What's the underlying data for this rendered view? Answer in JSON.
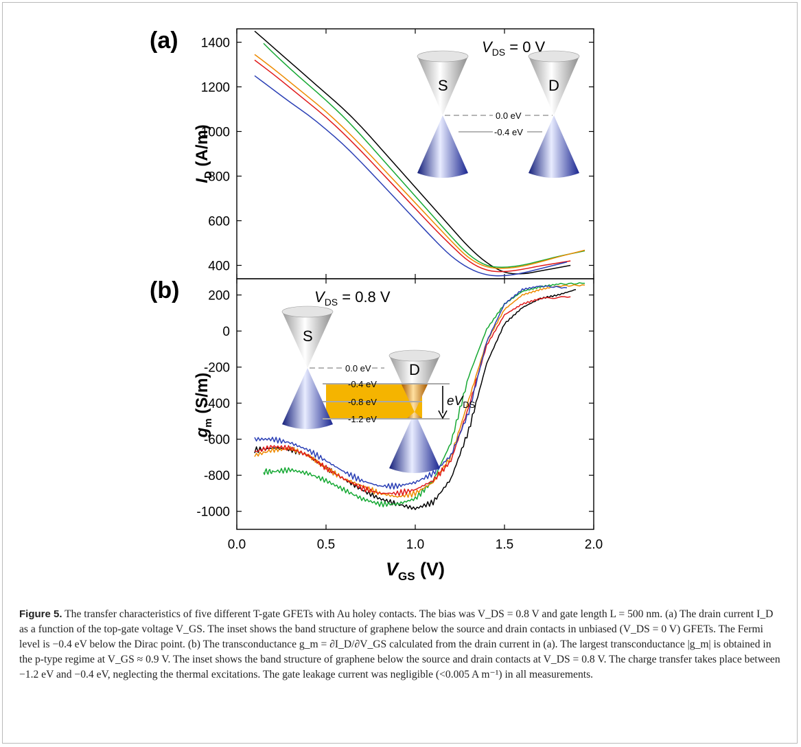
{
  "figure": {
    "panel_labels": [
      "(a)",
      "(b)"
    ],
    "caption_label": "Figure 5.",
    "caption_text": "  The transfer characteristics of five different T-gate GFETs with Au holey contacts. The bias was V_DS = 0.8 V and gate length L = 500 nm. (a) The drain current I_D as a function of the top-gate voltage V_GS. The inset shows the band structure of graphene below the source and drain contacts in unbiased (V_DS = 0 V) GFETs. The Fermi level is −0.4 eV below the Dirac point. (b) The transconductance g_m = ∂I_D/∂V_GS calculated from the drain current in (a). The largest transconductance |g_m| is obtained in the p-type regime at V_GS ≈ 0.9 V. The inset shows the band structure of graphene below the source and drain contacts at V_DS = 0.8 V. The charge transfer takes place between −1.2 eV and −0.4 eV, neglecting the thermal excitations. The gate leakage current was negligible (<0.005 A m⁻¹) in all measurements."
  },
  "inset_a": {
    "condition": "V_DS = 0 V",
    "source_label": "S",
    "drain_label": "D",
    "levels": [
      "0.0 eV",
      "-0.4 eV"
    ]
  },
  "inset_b": {
    "condition": "V_DS = 0.8 V",
    "source_label": "S",
    "drain_label": "D",
    "levels": [
      "0.0 eV",
      "-0.4 eV",
      "-0.8 eV",
      "-1.2 eV"
    ],
    "arrow_label": "eV_DS"
  },
  "colors": {
    "series": [
      "#000000",
      "#2a3fb5",
      "#e01818",
      "#ee8a00",
      "#14a832"
    ],
    "transfer_band": "#f5b400",
    "cone_gray": "#b8b8b8",
    "cone_blue": "#1d2e9a"
  },
  "chart_data": [
    {
      "type": "line",
      "panel": "(a)",
      "xlabel": "V_GS (V)",
      "ylabel": "I_D (A/m)",
      "xlim": [
        0.0,
        2.0
      ],
      "ylim": [
        340,
        1460
      ],
      "xticks": [
        "0.0",
        "0.5",
        "1.0",
        "1.5",
        "2.0"
      ],
      "yticks": [
        "400",
        "600",
        "800",
        "1000",
        "1200",
        "1400"
      ],
      "series": [
        {
          "color": "#000000",
          "x": [
            0.1,
            0.2,
            0.3,
            0.4,
            0.5,
            0.6,
            0.7,
            0.8,
            0.9,
            1.0,
            1.1,
            1.2,
            1.3,
            1.4,
            1.5,
            1.6,
            1.7,
            1.87
          ],
          "y": [
            1450,
            1380,
            1310,
            1240,
            1170,
            1100,
            1020,
            930,
            840,
            750,
            660,
            570,
            480,
            410,
            365,
            360,
            375,
            400
          ]
        },
        {
          "color": "#14a832",
          "x": [
            0.15,
            0.2,
            0.3,
            0.4,
            0.5,
            0.6,
            0.7,
            0.8,
            0.9,
            1.0,
            1.1,
            1.2,
            1.3,
            1.4,
            1.5,
            1.6,
            1.7,
            1.8,
            1.95
          ],
          "y": [
            1395,
            1355,
            1280,
            1210,
            1140,
            1065,
            980,
            890,
            800,
            710,
            620,
            530,
            445,
            395,
            390,
            400,
            420,
            440,
            465
          ]
        },
        {
          "color": "#ee8a00",
          "x": [
            0.1,
            0.2,
            0.3,
            0.4,
            0.5,
            0.6,
            0.7,
            0.8,
            0.9,
            1.0,
            1.1,
            1.2,
            1.3,
            1.4,
            1.5,
            1.6,
            1.7,
            1.8,
            1.95
          ],
          "y": [
            1345,
            1285,
            1220,
            1155,
            1090,
            1015,
            935,
            850,
            765,
            680,
            595,
            510,
            430,
            390,
            385,
            395,
            415,
            438,
            468
          ]
        },
        {
          "color": "#e01818",
          "x": [
            0.1,
            0.2,
            0.3,
            0.4,
            0.5,
            0.6,
            0.7,
            0.8,
            0.9,
            1.0,
            1.1,
            1.2,
            1.3,
            1.4,
            1.5,
            1.6,
            1.7,
            1.87
          ],
          "y": [
            1320,
            1260,
            1195,
            1130,
            1065,
            990,
            910,
            825,
            740,
            655,
            570,
            490,
            415,
            375,
            370,
            382,
            398,
            420
          ]
        },
        {
          "color": "#2a3fb5",
          "x": [
            0.1,
            0.2,
            0.3,
            0.4,
            0.5,
            0.6,
            0.7,
            0.8,
            0.9,
            1.0,
            1.1,
            1.2,
            1.3,
            1.4,
            1.5,
            1.6,
            1.7,
            1.85
          ],
          "y": [
            1250,
            1190,
            1130,
            1075,
            1010,
            940,
            860,
            775,
            690,
            605,
            520,
            440,
            385,
            355,
            352,
            365,
            385,
            415
          ]
        }
      ]
    },
    {
      "type": "line",
      "panel": "(b)",
      "xlabel": "V_GS (V)",
      "ylabel": "g_m (S/m)",
      "xlim": [
        0.0,
        2.0
      ],
      "ylim": [
        -1100,
        290
      ],
      "xticks": [
        "0.0",
        "0.5",
        "1.0",
        "1.5",
        "2.0"
      ],
      "yticks": [
        "-1000",
        "-800",
        "-600",
        "-400",
        "-200",
        "0",
        "200"
      ],
      "series": [
        {
          "color": "#000000",
          "x": [
            0.1,
            0.2,
            0.3,
            0.4,
            0.5,
            0.6,
            0.7,
            0.8,
            0.9,
            1.0,
            1.1,
            1.2,
            1.3,
            1.4,
            1.5,
            1.6,
            1.7,
            1.8,
            1.9
          ],
          "y": [
            -660,
            -650,
            -655,
            -690,
            -760,
            -820,
            -880,
            -930,
            -960,
            -985,
            -950,
            -820,
            -550,
            -180,
            40,
            130,
            180,
            200,
            230
          ]
        },
        {
          "color": "#14a832",
          "x": [
            0.15,
            0.2,
            0.3,
            0.4,
            0.5,
            0.6,
            0.7,
            0.8,
            0.9,
            1.0,
            1.1,
            1.2,
            1.3,
            1.4,
            1.5,
            1.6,
            1.7,
            1.8,
            1.95
          ],
          "y": [
            -780,
            -780,
            -770,
            -790,
            -830,
            -880,
            -930,
            -960,
            -960,
            -930,
            -830,
            -620,
            -250,
            10,
            150,
            220,
            245,
            260,
            265
          ]
        },
        {
          "color": "#ee8a00",
          "x": [
            0.1,
            0.2,
            0.3,
            0.4,
            0.5,
            0.6,
            0.7,
            0.8,
            0.9,
            1.0,
            1.1,
            1.2,
            1.3,
            1.4,
            1.5,
            1.6,
            1.7,
            1.8,
            1.95
          ],
          "y": [
            -690,
            -660,
            -650,
            -690,
            -760,
            -820,
            -860,
            -900,
            -920,
            -900,
            -840,
            -700,
            -380,
            -60,
            120,
            200,
            230,
            250,
            255
          ]
        },
        {
          "color": "#e01818",
          "x": [
            0.1,
            0.2,
            0.3,
            0.4,
            0.5,
            0.6,
            0.7,
            0.8,
            0.9,
            1.0,
            1.1,
            1.2,
            1.3,
            1.4,
            1.5,
            1.6,
            1.7,
            1.87
          ],
          "y": [
            -670,
            -640,
            -650,
            -690,
            -760,
            -820,
            -870,
            -900,
            -900,
            -880,
            -830,
            -720,
            -420,
            -80,
            90,
            150,
            180,
            190
          ]
        },
        {
          "color": "#2a3fb5",
          "x": [
            0.1,
            0.2,
            0.3,
            0.4,
            0.5,
            0.6,
            0.7,
            0.8,
            0.9,
            1.0,
            1.1,
            1.2,
            1.3,
            1.4,
            1.5,
            1.6,
            1.7,
            1.85
          ],
          "y": [
            -600,
            -600,
            -620,
            -660,
            -720,
            -780,
            -830,
            -860,
            -860,
            -840,
            -790,
            -690,
            -450,
            -60,
            150,
            230,
            250,
            240
          ]
        }
      ]
    }
  ]
}
